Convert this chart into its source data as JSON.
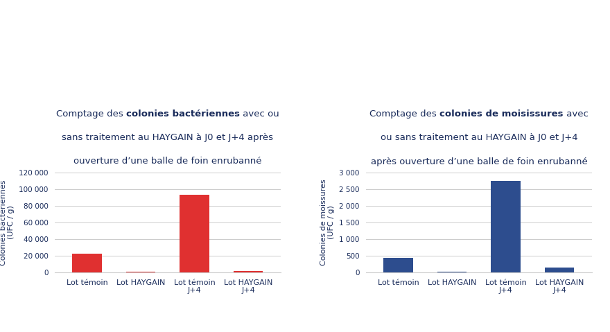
{
  "background_color": "#ffffff",
  "title_color": "#1a2c5b",
  "bar_color_red": "#e03030",
  "bar_color_blue": "#2d4d8e",
  "grid_color": "#cccccc",
  "chart1": {
    "ylabel": "Colonies bactériennes\n(UFC / g)",
    "categories": [
      "Lot témoin",
      "Lot HAYGAIN",
      "Lot témoin\nJ+4",
      "Lot HAYGAIN\nJ+4"
    ],
    "values": [
      22000,
      300,
      93000,
      1200
    ],
    "ylim": [
      0,
      120000
    ],
    "yticks": [
      0,
      20000,
      40000,
      60000,
      80000,
      100000,
      120000
    ],
    "ytick_labels": [
      "0",
      "20 000",
      "40 000",
      "60 000",
      "80 000",
      "100 000",
      "120 000"
    ]
  },
  "chart2": {
    "ylabel": "Colonies de moissures\n(UFC / g)",
    "categories": [
      "Lot témoin",
      "Lot HAYGAIN",
      "Lot témoin\nJ+4",
      "Lot HAYGAIN\nJ+4"
    ],
    "values": [
      440,
      20,
      2750,
      150
    ],
    "ylim": [
      0,
      3000
    ],
    "yticks": [
      0,
      500,
      1000,
      1500,
      2000,
      2500,
      3000
    ],
    "ytick_labels": [
      "0",
      "500",
      "1 000",
      "1 500",
      "2 000",
      "2 500",
      "3 000"
    ]
  },
  "title1_parts": [
    {
      "text": "Comptage des ",
      "bold": false
    },
    {
      "text": "colonies bactériennes",
      "bold": true
    },
    {
      "text": " avec ou",
      "bold": false
    }
  ],
  "title1_line2": "sans traitement au HAYGAIN à J0 et J+4 après",
  "title1_line3": "ouverture d’une balle de foin enrubanné",
  "title2_parts": [
    {
      "text": "Comptage des ",
      "bold": false
    },
    {
      "text": "colonies de moisissures",
      "bold": true
    },
    {
      "text": " avec",
      "bold": false
    }
  ],
  "title2_line2": "ou sans traitement au HAYGAIN à J0 et J+4",
  "title2_line3": "après ouverture d’une balle de foin enrubanné"
}
